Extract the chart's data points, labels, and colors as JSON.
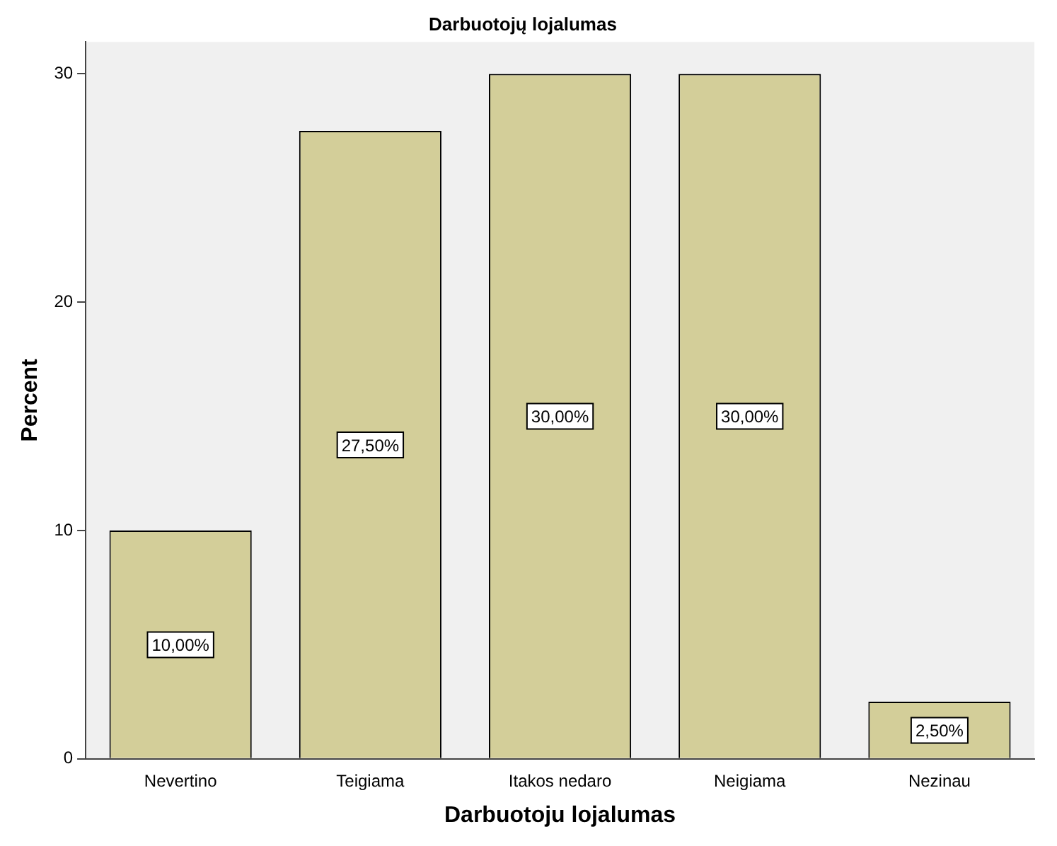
{
  "chart_data": {
    "type": "bar",
    "title": "Darbuotojų lojalumas",
    "xlabel": "Darbuotoju lojalumas",
    "ylabel": "Percent",
    "categories": [
      "Nevertino",
      "Teigiama",
      "Itakos nedaro",
      "Neigiama",
      "Nezinau"
    ],
    "values": [
      10,
      27.5,
      30,
      30,
      2.5
    ],
    "value_labels": [
      "10,00%",
      "27,50%",
      "30,00%",
      "30,00%",
      "2,50%"
    ],
    "color": "#d3ce99",
    "ylim": [
      0,
      31.4
    ],
    "yticks": [
      0,
      10,
      20,
      30
    ],
    "grid": false,
    "legend": false
  }
}
